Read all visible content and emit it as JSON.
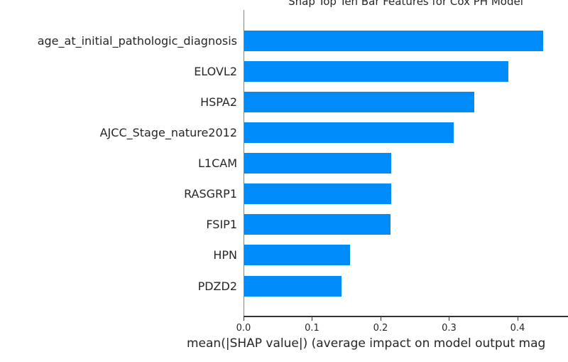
{
  "window": {
    "background": "#ffffff"
  },
  "chart_data": {
    "type": "bar",
    "orientation": "horizontal",
    "title": "Shap Top Ten Bar Features for Cox PH Model",
    "xlabel": "mean(|SHAP value|) (average impact on model output mag",
    "ylabel": "",
    "categories": [
      "age_at_initial_pathologic_diagnosis",
      "ELOVL2",
      "HSPA2",
      "AJCC_Stage_nature2012",
      "L1CAM",
      "RASGRP1",
      "FSIP1",
      "HPN",
      "PDZD2"
    ],
    "values": [
      0.436,
      0.386,
      0.336,
      0.306,
      0.214,
      0.214,
      0.213,
      0.154,
      0.142
    ],
    "x_tick_values": [
      0.0,
      0.1,
      0.2,
      0.3,
      0.4
    ],
    "x_tick_labels": [
      "0.0",
      "0.1",
      "0.2",
      "0.3",
      "0.4"
    ],
    "xlim": [
      0.0,
      0.474
    ],
    "grid": false,
    "legend_position": null,
    "bar_color": "#008bfb",
    "axis_color": "#333333",
    "spine_left_color": "#858585",
    "text_color": "#262626"
  }
}
